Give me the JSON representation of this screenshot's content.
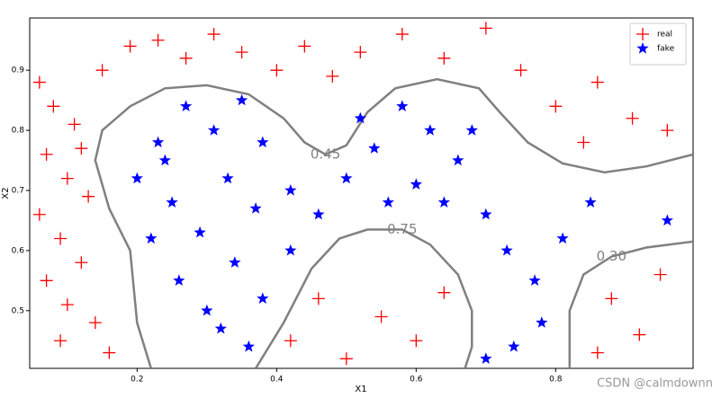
{
  "chart_data": {
    "type": "scatter",
    "xlabel": "X1",
    "ylabel": "X2",
    "xlim": [
      0.046,
      0.997
    ],
    "ylim": [
      0.404,
      0.987
    ],
    "xticks": [
      0.2,
      0.4,
      0.6,
      0.8
    ],
    "yticks": [
      0.5,
      0.6,
      0.7,
      0.8,
      0.9
    ],
    "legend": "upper right",
    "series": [
      {
        "name": "real",
        "color": "#ff0000",
        "marker": "plus",
        "x": [
          0.06,
          0.08,
          0.11,
          0.07,
          0.1,
          0.13,
          0.06,
          0.09,
          0.12,
          0.07,
          0.1,
          0.14,
          0.09,
          0.16,
          0.12,
          0.15,
          0.19,
          0.23,
          0.27,
          0.31,
          0.35,
          0.4,
          0.44,
          0.48,
          0.52,
          0.58,
          0.64,
          0.7,
          0.75,
          0.8,
          0.86,
          0.91,
          0.96,
          0.84,
          0.42,
          0.46,
          0.5,
          0.55,
          0.6,
          0.64,
          0.88,
          0.92,
          0.95,
          0.86
        ],
        "values": [
          0.88,
          0.84,
          0.81,
          0.76,
          0.72,
          0.69,
          0.66,
          0.62,
          0.58,
          0.55,
          0.51,
          0.48,
          0.45,
          0.43,
          0.77,
          0.9,
          0.94,
          0.95,
          0.92,
          0.96,
          0.93,
          0.9,
          0.94,
          0.89,
          0.93,
          0.96,
          0.92,
          0.97,
          0.9,
          0.84,
          0.88,
          0.82,
          0.8,
          0.78,
          0.45,
          0.52,
          0.42,
          0.49,
          0.45,
          0.53,
          0.52,
          0.46,
          0.56,
          0.43
        ]
      },
      {
        "name": "fake",
        "color": "#0000ff",
        "marker": "star",
        "x": [
          0.2,
          0.23,
          0.27,
          0.31,
          0.35,
          0.38,
          0.25,
          0.29,
          0.33,
          0.37,
          0.26,
          0.3,
          0.34,
          0.38,
          0.42,
          0.46,
          0.5,
          0.54,
          0.58,
          0.62,
          0.66,
          0.6,
          0.56,
          0.64,
          0.7,
          0.73,
          0.77,
          0.81,
          0.78,
          0.74,
          0.7,
          0.36,
          0.32,
          0.42,
          0.22,
          0.24,
          0.52,
          0.68,
          0.96,
          0.85
        ],
        "values": [
          0.72,
          0.78,
          0.84,
          0.8,
          0.85,
          0.78,
          0.68,
          0.63,
          0.72,
          0.67,
          0.55,
          0.5,
          0.58,
          0.52,
          0.7,
          0.66,
          0.72,
          0.77,
          0.84,
          0.8,
          0.75,
          0.71,
          0.68,
          0.68,
          0.66,
          0.6,
          0.55,
          0.62,
          0.48,
          0.44,
          0.42,
          0.44,
          0.47,
          0.6,
          0.62,
          0.75,
          0.82,
          0.8,
          0.65,
          0.68
        ]
      }
    ],
    "contours": [
      {
        "label": "0.45",
        "color": "#808080",
        "x": [
          0.22,
          0.2,
          0.19,
          0.16,
          0.14,
          0.15,
          0.19,
          0.24,
          0.3,
          0.36,
          0.41,
          0.44,
          0.47,
          0.5,
          0.53,
          0.57,
          0.63,
          0.69,
          0.72,
          0.76,
          0.81,
          0.87,
          0.93,
          0.997
        ],
        "y": [
          0.404,
          0.48,
          0.6,
          0.67,
          0.75,
          0.8,
          0.84,
          0.87,
          0.875,
          0.86,
          0.82,
          0.78,
          0.76,
          0.775,
          0.83,
          0.87,
          0.885,
          0.87,
          0.83,
          0.78,
          0.745,
          0.73,
          0.74,
          0.76
        ]
      },
      {
        "label": "0.75",
        "color": "#808080",
        "x": [
          0.37,
          0.41,
          0.45,
          0.49,
          0.53,
          0.58,
          0.62,
          0.66,
          0.68,
          0.68,
          0.67
        ],
        "y": [
          0.404,
          0.48,
          0.57,
          0.62,
          0.635,
          0.635,
          0.61,
          0.56,
          0.5,
          0.44,
          0.404
        ]
      },
      {
        "label": "0.30",
        "color": "#808080",
        "x": [
          0.82,
          0.82,
          0.84,
          0.88,
          0.93,
          0.997
        ],
        "y": [
          0.404,
          0.5,
          0.56,
          0.59,
          0.605,
          0.615
        ]
      }
    ],
    "watermark": "CSDN @calmdownn"
  }
}
